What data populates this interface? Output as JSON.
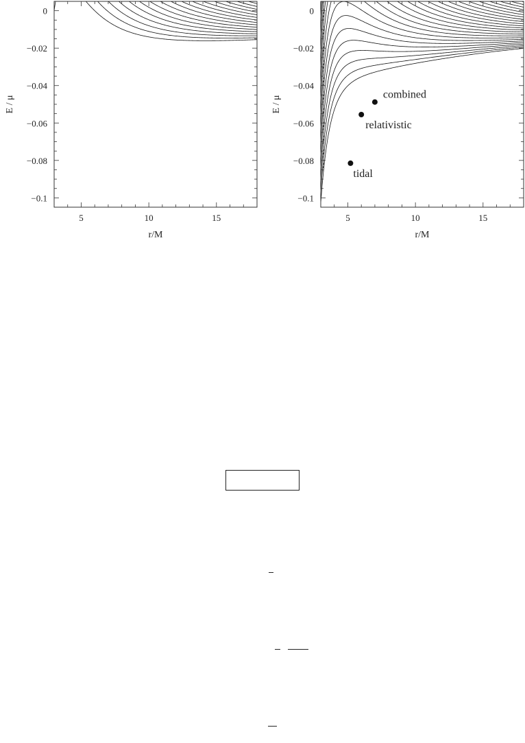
{
  "chart_data": [
    {
      "type": "line",
      "xlabel": "r/M",
      "ylabel": "E / μ",
      "xlim": [
        3,
        18
      ],
      "ylim": [
        -0.105,
        0.005
      ],
      "x_ticks": [
        5,
        10,
        15
      ],
      "x_tick_labels": [
        "5",
        "10",
        "15"
      ],
      "y_ticks": [
        0,
        -0.02,
        -0.04,
        -0.06,
        -0.08,
        -0.1
      ],
      "y_tick_labels": [
        "0",
        "−0.02",
        "−0.04",
        "−0.06",
        "−0.08",
        "−0.1"
      ],
      "grid": false,
      "curve_family": {
        "model": "relativistic",
        "count": 26,
        "L_start": 3.0,
        "L_step": 0.12
      },
      "minimum_locus": {
        "style": "dashed",
        "model": "relativistic"
      }
    },
    {
      "type": "line",
      "xlabel": "r/M",
      "ylabel": "E / μ",
      "xlim": [
        3,
        18
      ],
      "ylim": [
        -0.105,
        0.005
      ],
      "x_ticks": [
        5,
        10,
        15
      ],
      "x_tick_labels": [
        "5",
        "10",
        "15"
      ],
      "y_ticks": [
        0,
        -0.02,
        -0.04,
        -0.06,
        -0.08,
        -0.1
      ],
      "y_tick_labels": [
        "0",
        "−0.02",
        "−0.04",
        "−0.06",
        "−0.08",
        "−0.1"
      ],
      "grid": false,
      "curve_family": {
        "model": "combined",
        "count": 26,
        "L_start": 2.4,
        "L_step": 0.11
      },
      "minimum_locus": {
        "style": "dashed",
        "model": "combined"
      },
      "annotations": [
        {
          "text": "combined",
          "x": 7.0,
          "y": -0.0488
        },
        {
          "text": "relativistic",
          "x": 6.0,
          "y": -0.0555
        },
        {
          "text": "tidal",
          "x": 5.2,
          "y": -0.0815
        }
      ]
    }
  ]
}
